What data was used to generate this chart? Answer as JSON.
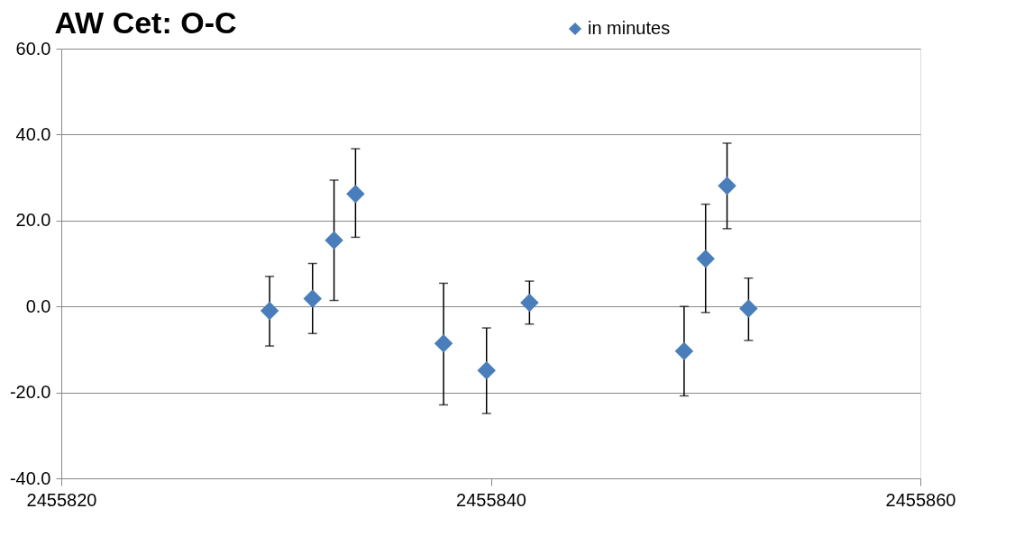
{
  "chart_data": {
    "type": "scatter",
    "title": "AW Cet: O-C",
    "x": [
      2455829.7,
      2455831.7,
      2455832.7,
      2455833.7,
      2455837.8,
      2455839.8,
      2455841.8,
      2455849.0,
      2455850.0,
      2455851.0,
      2455852.0
    ],
    "series": [
      {
        "name": "in minutes",
        "color": "#4a7ebb",
        "values": [
          -1.0,
          1.8,
          15.4,
          26.2,
          -8.6,
          -14.9,
          0.9,
          -10.4,
          11.1,
          28.1,
          -0.5
        ],
        "errors": [
          [
            -9.2,
            7.0
          ],
          [
            -6.3,
            10.0
          ],
          [
            1.4,
            29.4
          ],
          [
            16.1,
            36.7
          ],
          [
            -22.9,
            5.4
          ],
          [
            -24.9,
            -5.0
          ],
          [
            -4.1,
            5.9
          ],
          [
            -20.8,
            0.0
          ],
          [
            -1.4,
            23.8
          ],
          [
            18.1,
            38.0
          ],
          [
            -7.9,
            6.6
          ]
        ]
      }
    ],
    "xlim": [
      2455820,
      2455860
    ],
    "xticks": [
      2455820,
      2455840,
      2455860
    ],
    "ylim": [
      -40,
      60
    ],
    "yticks": [
      {
        "value": -40,
        "label": "-40.0"
      },
      {
        "value": -20,
        "label": "-20.0"
      },
      {
        "value": 0,
        "label": "0.0"
      },
      {
        "value": 20,
        "label": "20.0"
      },
      {
        "value": 40,
        "label": "40.0"
      },
      {
        "value": 60,
        "label": "60.0"
      }
    ],
    "grid": "y",
    "legend": "top",
    "marker": "diamond"
  }
}
